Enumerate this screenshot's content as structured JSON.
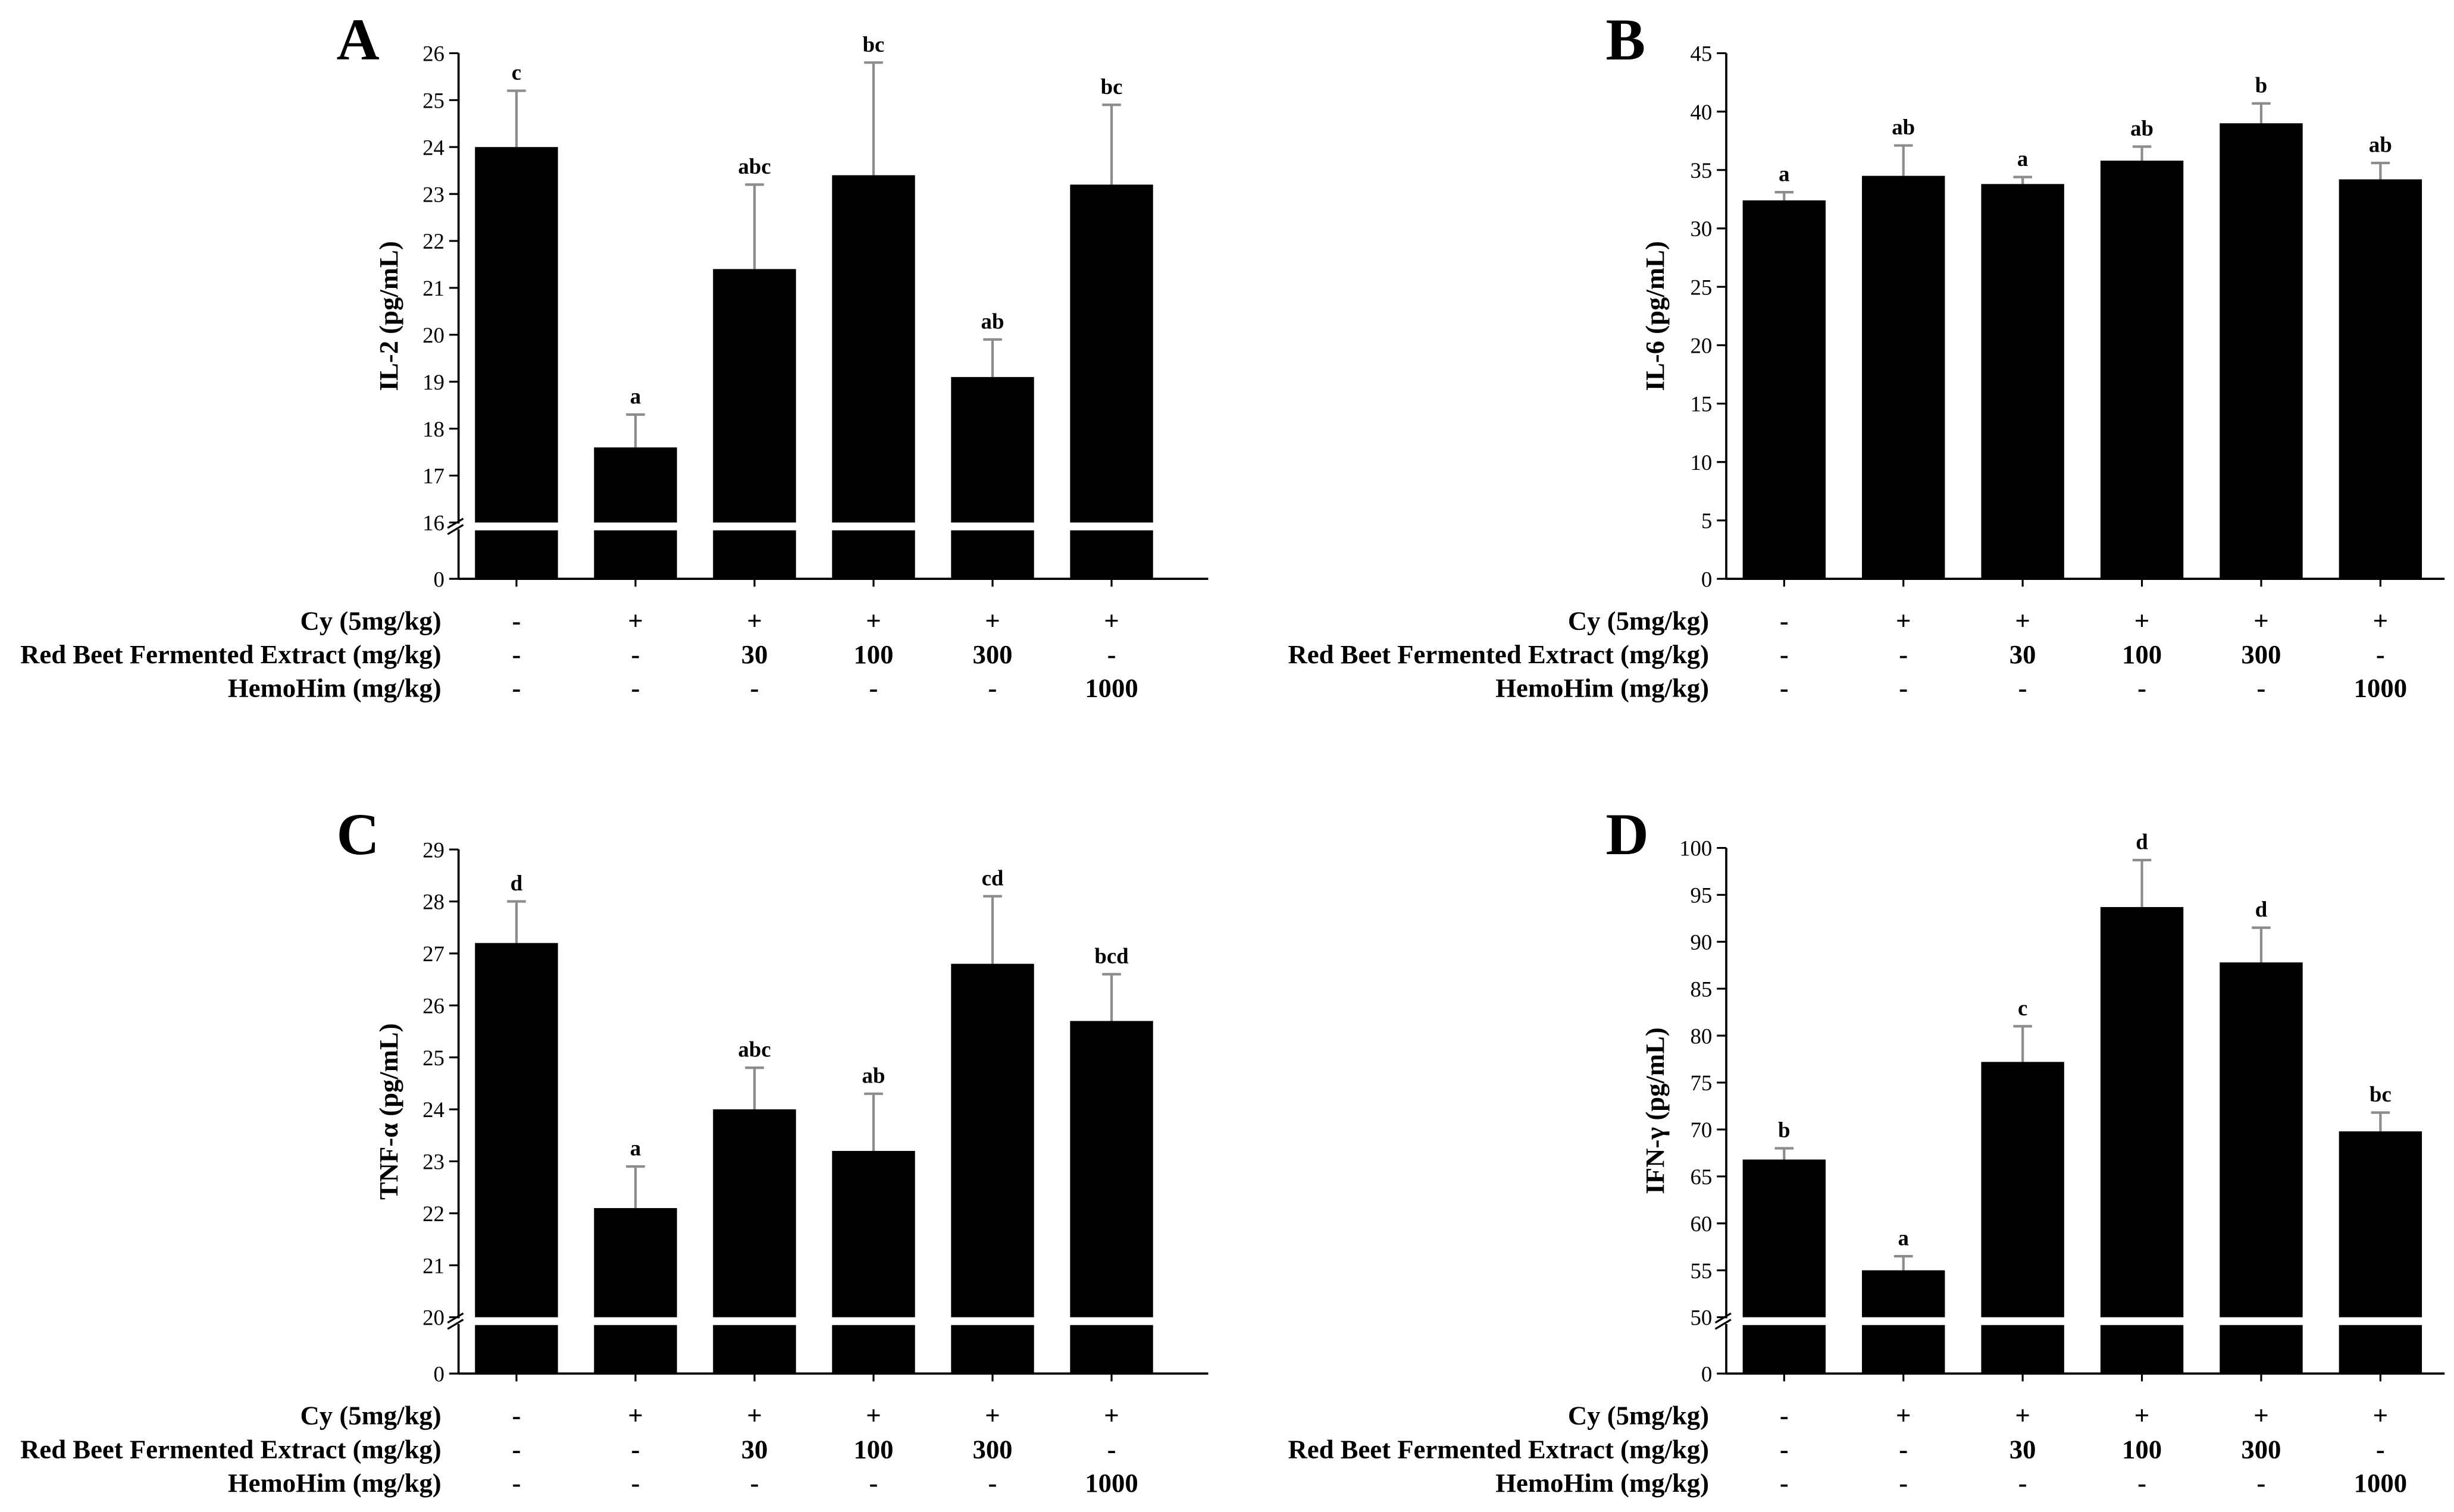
{
  "colors": {
    "bar": "#000000",
    "error_bar": "#8c8c8c",
    "axis": "#000000",
    "break_gap": "#ffffff"
  },
  "treatment_table": {
    "rows": [
      {
        "label": "Cy (5mg/kg)",
        "values": [
          "-",
          "+",
          "+",
          "+",
          "+",
          "+"
        ]
      },
      {
        "label": "Red Beet Fermented Extract (mg/kg)",
        "values": [
          "-",
          "-",
          "30",
          "100",
          "300",
          "-"
        ]
      },
      {
        "label": "HemoHim (mg/kg)",
        "values": [
          "-",
          "-",
          "-",
          "-",
          "-",
          "1000"
        ]
      }
    ]
  },
  "chart_data": [
    {
      "panel": "A",
      "type": "bar",
      "ylabel": "IL-2 (pg/mL)",
      "values": [
        24.0,
        17.6,
        21.4,
        23.4,
        19.1,
        23.2
      ],
      "errors": [
        1.2,
        0.7,
        1.8,
        2.4,
        0.8,
        1.7
      ],
      "significance_labels": [
        "c",
        "a",
        "abc",
        "bc",
        "ab",
        "bc"
      ],
      "ylim": [
        0,
        26
      ],
      "ybreak": [
        0,
        16
      ],
      "yticks": [
        0,
        16,
        17,
        18,
        19,
        20,
        21,
        22,
        23,
        24,
        25,
        26
      ]
    },
    {
      "panel": "B",
      "type": "bar",
      "ylabel": "IL-6 (pg/mL)",
      "values": [
        32.4,
        34.5,
        33.8,
        35.8,
        39.0,
        34.2
      ],
      "errors": [
        0.7,
        2.6,
        0.6,
        1.2,
        1.7,
        1.4
      ],
      "significance_labels": [
        "a",
        "ab",
        "a",
        "ab",
        "b",
        "ab"
      ],
      "ylim": [
        0,
        45
      ],
      "ybreak": null,
      "yticks": [
        0,
        5,
        10,
        15,
        20,
        25,
        30,
        35,
        40,
        45
      ]
    },
    {
      "panel": "C",
      "type": "bar",
      "ylabel": "TNF-α (pg/mL)",
      "values": [
        27.2,
        22.1,
        24.0,
        23.2,
        26.8,
        25.7
      ],
      "errors": [
        0.8,
        0.8,
        0.8,
        1.1,
        1.3,
        0.9
      ],
      "significance_labels": [
        "d",
        "a",
        "abc",
        "ab",
        "cd",
        "bcd"
      ],
      "ylim": [
        0,
        29
      ],
      "ybreak": [
        0,
        20
      ],
      "yticks": [
        0,
        20,
        21,
        22,
        23,
        24,
        25,
        26,
        27,
        28,
        29
      ]
    },
    {
      "panel": "D",
      "type": "bar",
      "ylabel": "IFN-γ (pg/mL)",
      "values": [
        66.8,
        55.0,
        77.2,
        93.7,
        87.8,
        69.8
      ],
      "errors": [
        1.2,
        1.5,
        3.8,
        5.0,
        3.7,
        2.0
      ],
      "significance_labels": [
        "b",
        "a",
        "c",
        "d",
        "d",
        "bc"
      ],
      "ylim": [
        0,
        100
      ],
      "ybreak": [
        0,
        50
      ],
      "yticks": [
        0,
        50,
        55,
        60,
        65,
        70,
        75,
        80,
        85,
        90,
        95,
        100
      ]
    }
  ]
}
